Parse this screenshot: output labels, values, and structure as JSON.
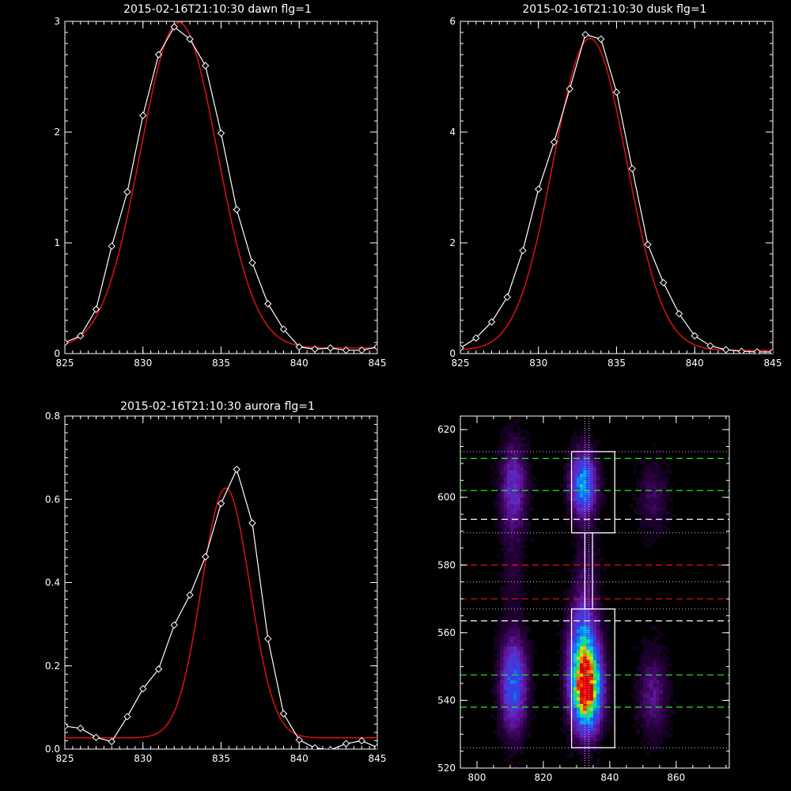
{
  "colors": {
    "background": "#000000",
    "data_line": "#ffffff",
    "fit_line": "#dd1111",
    "marker": "#ffffff"
  },
  "chart_data": [
    {
      "type": "line",
      "title": "2015-02-16T21:10:30 dawn flg=1",
      "xlim": [
        825,
        845
      ],
      "ylim": [
        0,
        3
      ],
      "xticks": [
        "825",
        "830",
        "835",
        "840",
        "845"
      ],
      "yticks": [
        "0",
        "1",
        "2",
        "3"
      ],
      "series": [
        {
          "x": [
            825,
            826,
            827,
            828,
            829,
            830,
            831,
            832,
            833,
            834,
            835,
            836,
            837,
            838,
            839,
            840,
            841,
            842,
            843,
            844,
            845
          ],
          "values": [
            0.1,
            0.16,
            0.4,
            0.97,
            1.46,
            2.15,
            2.7,
            2.95,
            2.84,
            2.6,
            1.99,
            1.3,
            0.82,
            0.45,
            0.22,
            0.06,
            0.04,
            0.05,
            0.03,
            0.03,
            0.06
          ]
        }
      ],
      "fit": {
        "amplitude": 2.94,
        "center": 832.3,
        "sigma": 2.45,
        "offset": 0.05
      }
    },
    {
      "type": "line",
      "title": "2015-02-16T21:10:30 dusk flg=1",
      "xlim": [
        825,
        845
      ],
      "ylim": [
        0,
        6
      ],
      "xticks": [
        "825",
        "830",
        "835",
        "840",
        "845"
      ],
      "yticks": [
        "0",
        "2",
        "4",
        "6"
      ],
      "series": [
        {
          "x": [
            825,
            826,
            827,
            828,
            829,
            830,
            831,
            832,
            833,
            834,
            835,
            836,
            837,
            838,
            839,
            840,
            841,
            842,
            843,
            844,
            845
          ],
          "values": [
            0.1,
            0.28,
            0.57,
            1.02,
            1.86,
            2.97,
            3.82,
            4.78,
            5.76,
            5.68,
            4.72,
            3.34,
            1.97,
            1.28,
            0.72,
            0.32,
            0.14,
            0.07,
            0.04,
            0.03,
            0.03
          ]
        }
      ],
      "fit": {
        "amplitude": 5.63,
        "center": 833.3,
        "sigma": 2.35,
        "offset": 0.06
      }
    },
    {
      "type": "line",
      "title": "2015-02-16T21:10:30 aurora flg=1",
      "xlim": [
        825,
        845
      ],
      "ylim": [
        0,
        0.8
      ],
      "xticks": [
        "825",
        "830",
        "835",
        "840",
        "845"
      ],
      "yticks": [
        "0.0",
        "0.2",
        "0.4",
        "0.6",
        "0.8"
      ],
      "series": [
        {
          "x": [
            825,
            826,
            827,
            828,
            829,
            830,
            831,
            832,
            833,
            834,
            835,
            836,
            837,
            838,
            839,
            840,
            841,
            842,
            843,
            844,
            845
          ],
          "values": [
            0.055,
            0.05,
            0.028,
            0.018,
            0.078,
            0.145,
            0.192,
            0.298,
            0.37,
            0.462,
            0.59,
            0.672,
            0.543,
            0.265,
            0.085,
            0.022,
            0.003,
            -0.002,
            0.013,
            0.02,
            0.004
          ]
        }
      ],
      "fit": {
        "amplitude": 0.6,
        "center": 835.3,
        "sigma": 1.55,
        "offset": 0.027
      }
    },
    {
      "type": "heatmap",
      "title": "",
      "xlim": [
        795,
        876
      ],
      "ylim": [
        520,
        624
      ],
      "xticks": [
        "800",
        "820",
        "840",
        "860"
      ],
      "yticks": [
        "520",
        "540",
        "560",
        "580",
        "600",
        "620"
      ],
      "blobs": [
        {
          "x": 833,
          "y": 543,
          "sx": 2.8,
          "sy": 7.5,
          "amp": 1.0
        },
        {
          "x": 832,
          "y": 555,
          "sx": 2.8,
          "sy": 9.0,
          "amp": 0.45
        },
        {
          "x": 832,
          "y": 604,
          "sx": 2.5,
          "sy": 6.0,
          "amp": 0.48
        },
        {
          "x": 811,
          "y": 545,
          "sx": 2.6,
          "sy": 9.0,
          "amp": 0.38
        },
        {
          "x": 811,
          "y": 603,
          "sx": 2.6,
          "sy": 8.5,
          "amp": 0.24
        },
        {
          "x": 853,
          "y": 542,
          "sx": 3.0,
          "sy": 8.0,
          "amp": 0.14
        },
        {
          "x": 853,
          "y": 600,
          "sx": 3.0,
          "sy": 7.0,
          "amp": 0.09
        },
        {
          "x": 833,
          "y": 578,
          "sx": 2.5,
          "sy": 10.0,
          "amp": 0.08
        },
        {
          "x": 811,
          "y": 578,
          "sx": 2.5,
          "sy": 9.0,
          "amp": 0.05
        }
      ],
      "green_dashed_y": [
        611.5,
        602,
        547.5,
        538
      ],
      "white_dashed_y": [
        593.5,
        563.5
      ],
      "red_dashed_y": [
        580,
        570
      ],
      "dotted_y": [
        613.5,
        589.5,
        575,
        567,
        526
      ],
      "dotted_x": [
        832.5,
        833.7
      ],
      "boxes": [
        {
          "x0": 828.5,
          "x1": 841.5,
          "y0": 589.5,
          "y1": 613.5
        },
        {
          "x0": 828.5,
          "x1": 841.5,
          "y0": 526,
          "y1": 567
        }
      ],
      "bridge": {
        "x0": 832.5,
        "x1": 834.8,
        "y0": 567,
        "y1": 589.5
      }
    }
  ]
}
